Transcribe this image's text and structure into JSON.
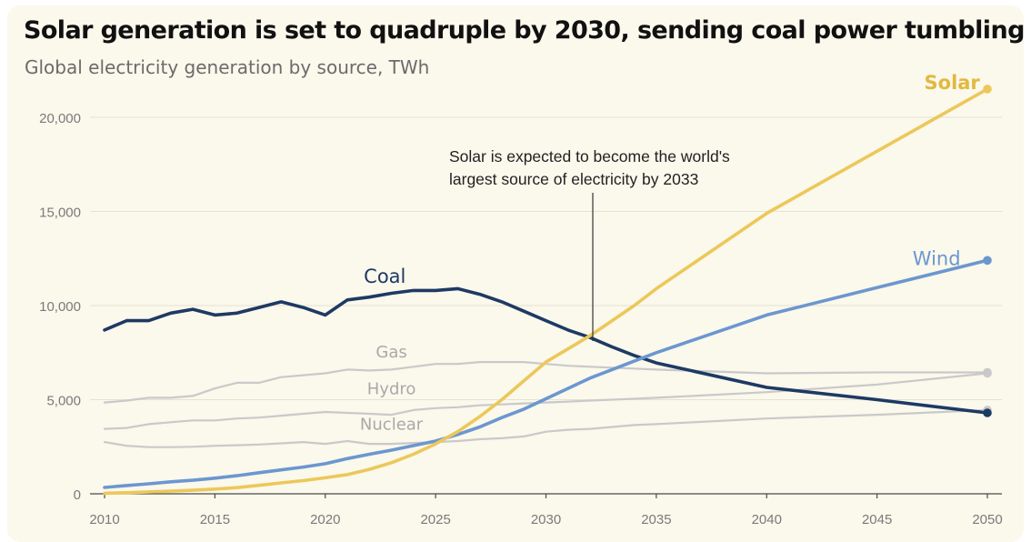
{
  "title": "Solar generation is set to quadruple by 2030, sending coal power tumbling",
  "subtitle": "Global electricity generation by source, TWh",
  "annotation": [
    "Solar is expected to become the world's",
    "largest source of electricity by 2033"
  ],
  "colors": {
    "background": "#fbf8ec",
    "grid": "#e6e2d3",
    "axis_text": "#7a7a7a",
    "solar": "#ecc85a",
    "wind": "#6b97cf",
    "coal": "#1d3a63",
    "gas": "#c9c9c9",
    "hydro": "#c9c9c9",
    "nuclear": "#c9c9c9"
  },
  "chart_data": {
    "type": "line",
    "title": "Solar generation is set to quadruple by 2030, sending coal power tumbling",
    "subtitle": "Global electricity generation by source, TWh",
    "xlim": [
      2010,
      2050
    ],
    "ylim": [
      0,
      21000
    ],
    "xticks": [
      "2010",
      "2015",
      "2020",
      "2025",
      "2030",
      "2035",
      "2040",
      "2045",
      "2050"
    ],
    "yticks": [
      "0",
      "5,000",
      "10,000",
      "15,000",
      "20,000"
    ],
    "grid": true,
    "series": [
      {
        "name": "Solar",
        "label_year": 2048.4,
        "label_value": 21500,
        "end_marker": true,
        "points": [
          [
            2010,
            30
          ],
          [
            2011,
            60
          ],
          [
            2012,
            100
          ],
          [
            2013,
            140
          ],
          [
            2014,
            190
          ],
          [
            2015,
            250
          ],
          [
            2016,
            330
          ],
          [
            2017,
            450
          ],
          [
            2018,
            580
          ],
          [
            2019,
            700
          ],
          [
            2020,
            850
          ],
          [
            2021,
            1020
          ],
          [
            2022,
            1300
          ],
          [
            2023,
            1650
          ],
          [
            2024,
            2100
          ],
          [
            2025,
            2650
          ],
          [
            2026,
            3300
          ],
          [
            2027,
            4100
          ],
          [
            2028,
            5000
          ],
          [
            2029,
            6000
          ],
          [
            2030,
            7000
          ],
          [
            2031,
            7700
          ],
          [
            2032,
            8400
          ],
          [
            2033,
            9200
          ],
          [
            2034,
            10000
          ],
          [
            2035,
            10900
          ],
          [
            2040,
            14900
          ],
          [
            2045,
            18200
          ],
          [
            2050,
            21500
          ]
        ]
      },
      {
        "name": "Wind",
        "label_year": 2047.7,
        "label_value": 12150,
        "end_marker": true,
        "points": [
          [
            2010,
            340
          ],
          [
            2011,
            440
          ],
          [
            2012,
            530
          ],
          [
            2013,
            640
          ],
          [
            2014,
            720
          ],
          [
            2015,
            830
          ],
          [
            2016,
            960
          ],
          [
            2017,
            1120
          ],
          [
            2018,
            1270
          ],
          [
            2019,
            1420
          ],
          [
            2020,
            1600
          ],
          [
            2021,
            1870
          ],
          [
            2022,
            2100
          ],
          [
            2023,
            2320
          ],
          [
            2024,
            2560
          ],
          [
            2025,
            2800
          ],
          [
            2026,
            3150
          ],
          [
            2027,
            3550
          ],
          [
            2028,
            4050
          ],
          [
            2029,
            4500
          ],
          [
            2030,
            5050
          ],
          [
            2031,
            5600
          ],
          [
            2032,
            6150
          ],
          [
            2033,
            6600
          ],
          [
            2034,
            7050
          ],
          [
            2035,
            7500
          ],
          [
            2040,
            9500
          ],
          [
            2045,
            10950
          ],
          [
            2050,
            12400
          ]
        ]
      },
      {
        "name": "Coal",
        "label_year": 2022.7,
        "label_value": 11200,
        "end_marker": true,
        "points": [
          [
            2010,
            8700
          ],
          [
            2011,
            9200
          ],
          [
            2012,
            9200
          ],
          [
            2013,
            9600
          ],
          [
            2014,
            9800
          ],
          [
            2015,
            9500
          ],
          [
            2016,
            9600
          ],
          [
            2017,
            9900
          ],
          [
            2018,
            10200
          ],
          [
            2019,
            9900
          ],
          [
            2020,
            9500
          ],
          [
            2021,
            10300
          ],
          [
            2022,
            10450
          ],
          [
            2023,
            10650
          ],
          [
            2024,
            10800
          ],
          [
            2025,
            10800
          ],
          [
            2026,
            10900
          ],
          [
            2027,
            10600
          ],
          [
            2028,
            10200
          ],
          [
            2029,
            9700
          ],
          [
            2030,
            9200
          ],
          [
            2031,
            8700
          ],
          [
            2032,
            8300
          ],
          [
            2033,
            7800
          ],
          [
            2034,
            7350
          ],
          [
            2035,
            6950
          ],
          [
            2040,
            5650
          ],
          [
            2045,
            5000
          ],
          [
            2050,
            4300
          ]
        ]
      },
      {
        "name": "Gas",
        "label_year": 2023.0,
        "label_value": 7250,
        "end_marker": true,
        "points": [
          [
            2010,
            4850
          ],
          [
            2011,
            4950
          ],
          [
            2012,
            5100
          ],
          [
            2013,
            5100
          ],
          [
            2014,
            5200
          ],
          [
            2015,
            5600
          ],
          [
            2016,
            5900
          ],
          [
            2017,
            5900
          ],
          [
            2018,
            6200
          ],
          [
            2019,
            6300
          ],
          [
            2020,
            6400
          ],
          [
            2021,
            6600
          ],
          [
            2022,
            6550
          ],
          [
            2023,
            6600
          ],
          [
            2024,
            6750
          ],
          [
            2025,
            6900
          ],
          [
            2026,
            6900
          ],
          [
            2027,
            7000
          ],
          [
            2028,
            7000
          ],
          [
            2029,
            7000
          ],
          [
            2030,
            6900
          ],
          [
            2031,
            6800
          ],
          [
            2032,
            6750
          ],
          [
            2033,
            6700
          ],
          [
            2034,
            6650
          ],
          [
            2035,
            6600
          ],
          [
            2040,
            6400
          ],
          [
            2045,
            6450
          ],
          [
            2050,
            6450
          ]
        ]
      },
      {
        "name": "Hydro",
        "label_year": 2023.0,
        "label_value": 5300,
        "end_marker": true,
        "points": [
          [
            2010,
            3450
          ],
          [
            2011,
            3500
          ],
          [
            2012,
            3700
          ],
          [
            2013,
            3800
          ],
          [
            2014,
            3900
          ],
          [
            2015,
            3900
          ],
          [
            2016,
            4000
          ],
          [
            2017,
            4050
          ],
          [
            2018,
            4150
          ],
          [
            2019,
            4250
          ],
          [
            2020,
            4350
          ],
          [
            2021,
            4300
          ],
          [
            2022,
            4250
          ],
          [
            2023,
            4200
          ],
          [
            2024,
            4450
          ],
          [
            2025,
            4550
          ],
          [
            2026,
            4600
          ],
          [
            2027,
            4700
          ],
          [
            2028,
            4750
          ],
          [
            2029,
            4800
          ],
          [
            2030,
            4850
          ],
          [
            2031,
            4900
          ],
          [
            2032,
            4950
          ],
          [
            2033,
            5000
          ],
          [
            2034,
            5050
          ],
          [
            2035,
            5100
          ],
          [
            2040,
            5400
          ],
          [
            2045,
            5800
          ],
          [
            2050,
            6400
          ]
        ]
      },
      {
        "name": "Nuclear",
        "label_year": 2023.0,
        "label_value": 3400,
        "end_marker": true,
        "points": [
          [
            2010,
            2750
          ],
          [
            2011,
            2550
          ],
          [
            2012,
            2480
          ],
          [
            2013,
            2480
          ],
          [
            2014,
            2500
          ],
          [
            2015,
            2550
          ],
          [
            2016,
            2580
          ],
          [
            2017,
            2620
          ],
          [
            2018,
            2680
          ],
          [
            2019,
            2750
          ],
          [
            2020,
            2650
          ],
          [
            2021,
            2800
          ],
          [
            2022,
            2650
          ],
          [
            2023,
            2650
          ],
          [
            2024,
            2700
          ],
          [
            2025,
            2750
          ],
          [
            2026,
            2800
          ],
          [
            2027,
            2900
          ],
          [
            2028,
            2950
          ],
          [
            2029,
            3050
          ],
          [
            2030,
            3300
          ],
          [
            2031,
            3400
          ],
          [
            2032,
            3450
          ],
          [
            2033,
            3550
          ],
          [
            2034,
            3650
          ],
          [
            2035,
            3700
          ],
          [
            2040,
            4000
          ],
          [
            2045,
            4200
          ],
          [
            2050,
            4450
          ]
        ]
      }
    ]
  }
}
